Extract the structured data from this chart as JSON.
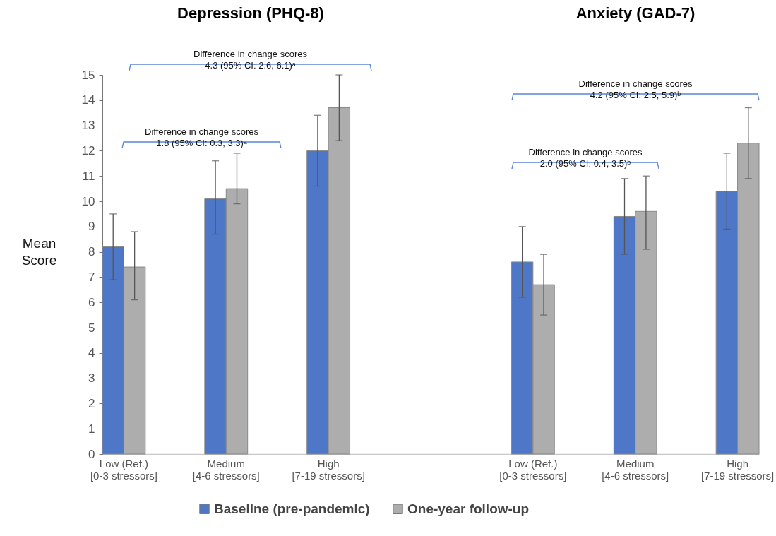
{
  "chart_data": {
    "type": "bar",
    "ylabel": "Mean Score",
    "categories": [
      "Low (Ref.) [0-3 stressors]",
      "Medium [4-6 stressors]",
      "High [7-19 stressors]",
      null,
      "Low (Ref.) [0-3 stressors]",
      "Medium [4-6 stressors]",
      "High [7-19 stressors]"
    ],
    "series": [
      {
        "name": "Baseline (pre-pandemic)",
        "color": "#4f77c7",
        "values": [
          8.2,
          10.1,
          12.0,
          null,
          7.6,
          9.4,
          10.4
        ],
        "errors": [
          [
            6.9,
            9.5
          ],
          [
            8.7,
            11.6
          ],
          [
            10.6,
            13.4
          ],
          null,
          [
            6.2,
            9.0
          ],
          [
            7.9,
            10.9
          ],
          [
            8.9,
            11.9
          ]
        ]
      },
      {
        "name": "One-year follow-up",
        "color": "#adadad",
        "values": [
          7.4,
          10.5,
          13.7,
          null,
          6.7,
          9.6,
          12.3
        ],
        "errors": [
          [
            6.1,
            8.8
          ],
          [
            9.9,
            11.9
          ],
          [
            12.4,
            15.0
          ],
          null,
          [
            5.5,
            7.9
          ],
          [
            8.1,
            11.0
          ],
          [
            10.9,
            13.7
          ]
        ]
      }
    ],
    "ylim": [
      0,
      15
    ],
    "yticks": [
      0,
      1,
      2,
      3,
      4,
      5,
      6,
      7,
      8,
      9,
      10,
      11,
      12,
      13,
      14,
      15
    ],
    "legend": "bottom",
    "annotations": [
      "Depression (PHQ-8)",
      "Anxiety (GAD-7)",
      "Difference in change scores\n4.3 (95% CI: 2.6, 6.1)ᵃ",
      "Difference in change scores\n1.8 (95% CI: 0.3, 3.3)ᵃ",
      "Difference in change scores\n4.2 (95% CI: 2.5, 5.9)ᵇ",
      "Difference in change scores\n2.0 (95% CI: 0.4, 3.5)ᵇ"
    ]
  }
}
